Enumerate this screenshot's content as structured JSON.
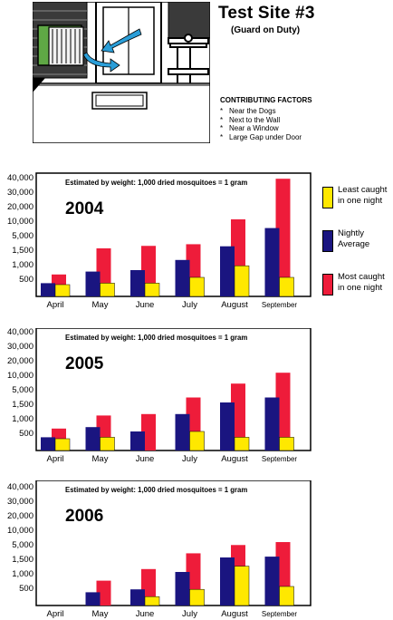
{
  "header": {
    "title": "Test Site #3",
    "subtitle": "(Guard on Duty)",
    "factors_title": "CONTRIBUTING FACTORS",
    "factors": [
      "Near the Dogs",
      "Next to the Wall",
      "Near a Window",
      "Large Gap under Door"
    ],
    "bullet": "*"
  },
  "legend": {
    "least": "Least caught in one night",
    "average": "Nightly Average",
    "most": "Most caught in one night"
  },
  "colors": {
    "least": "#ffe800",
    "average": "#1a1580",
    "most": "#ee1c3a",
    "border": "#000000"
  },
  "chart_data": [
    {
      "type": "bar",
      "title": "2004",
      "annotation": "Estimated by weight: 1,000 dried mosquitoes = 1 gram",
      "categories": [
        "April",
        "May",
        "June",
        "July",
        "August",
        "September"
      ],
      "y_ticks": [
        "500",
        "1,000",
        "1,500",
        "5,000",
        "10,000",
        "20,000",
        "30,000",
        "40,000"
      ],
      "series": [
        {
          "name": "Nightly Average",
          "values": [
            300,
            700,
            750,
            1100,
            2000,
            7000
          ]
        },
        {
          "name": "Least caught in one night",
          "values": [
            250,
            300,
            300,
            500,
            900,
            500
          ]
        },
        {
          "name": "Most caught in one night",
          "values": [
            600,
            1500,
            2100,
            2500,
            10000,
            38000
          ]
        }
      ]
    },
    {
      "type": "bar",
      "title": "2005",
      "annotation": "Estimated by weight: 1,000 dried mosquitoes = 1 gram",
      "categories": [
        "April",
        "May",
        "June",
        "July",
        "August",
        "September"
      ],
      "y_ticks": [
        "500",
        "1,000",
        "1,500",
        "5,000",
        "10,000",
        "20,000",
        "30,000",
        "40,000"
      ],
      "series": [
        {
          "name": "Nightly Average",
          "values": [
            300,
            650,
            500,
            1100,
            1500,
            2700
          ]
        },
        {
          "name": "Least caught in one night",
          "values": [
            250,
            300,
            0,
            500,
            300,
            300
          ]
        },
        {
          "name": "Most caught in one night",
          "values": [
            600,
            1050,
            1100,
            2700,
            6500,
            10500
          ]
        }
      ]
    },
    {
      "type": "bar",
      "title": "2006",
      "annotation": "Estimated by weight: 1,000 dried mosquitoes = 1 gram",
      "categories": [
        "April",
        "May",
        "June",
        "July",
        "August",
        "September"
      ],
      "y_ticks": [
        "500",
        "1,000",
        "1,500",
        "5,000",
        "10,000",
        "20,000",
        "30,000",
        "40,000"
      ],
      "series": [
        {
          "name": "Nightly Average",
          "values": [
            0,
            300,
            400,
            1000,
            1500,
            1700
          ]
        },
        {
          "name": "Least caught in one night",
          "values": [
            0,
            0,
            150,
            400,
            1200,
            500
          ]
        },
        {
          "name": "Most caught in one night",
          "values": [
            0,
            700,
            1100,
            2500,
            4500,
            5300
          ]
        }
      ]
    }
  ]
}
